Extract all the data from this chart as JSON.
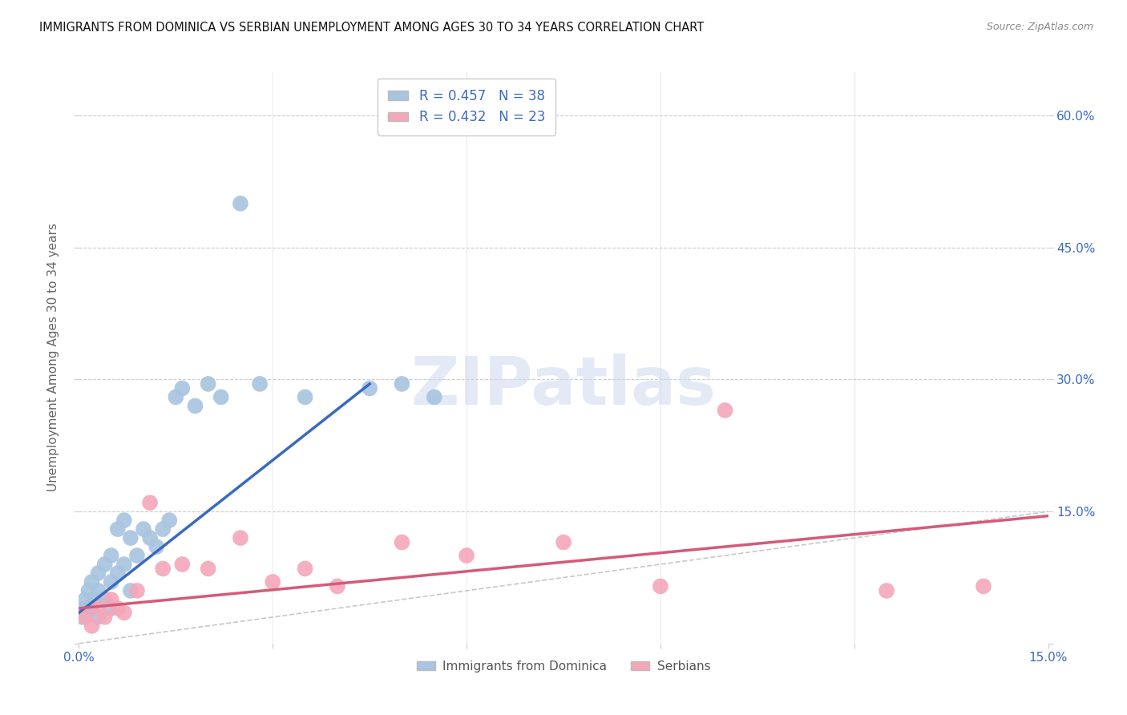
{
  "title": "IMMIGRANTS FROM DOMINICA VS SERBIAN UNEMPLOYMENT AMONG AGES 30 TO 34 YEARS CORRELATION CHART",
  "source": "Source: ZipAtlas.com",
  "ylabel": "Unemployment Among Ages 30 to 34 years",
  "xlim": [
    0.0,
    0.15
  ],
  "ylim": [
    0.0,
    0.65
  ],
  "dominica_R": 0.457,
  "dominica_N": 38,
  "serbian_R": 0.432,
  "serbian_N": 23,
  "dominica_color": "#a8c4e0",
  "dominica_line_color": "#3a6abf",
  "serbian_color": "#f4a7b9",
  "serbian_line_color": "#d45a78",
  "diagonal_color": "#bbbbbb",
  "dominica_x": [
    0.0005,
    0.001,
    0.001,
    0.0015,
    0.002,
    0.002,
    0.0025,
    0.003,
    0.003,
    0.003,
    0.004,
    0.004,
    0.005,
    0.005,
    0.005,
    0.006,
    0.006,
    0.007,
    0.007,
    0.008,
    0.008,
    0.009,
    0.01,
    0.011,
    0.012,
    0.013,
    0.014,
    0.015,
    0.016,
    0.018,
    0.02,
    0.022,
    0.025,
    0.028,
    0.035,
    0.045,
    0.05,
    0.055
  ],
  "dominica_y": [
    0.03,
    0.04,
    0.05,
    0.06,
    0.04,
    0.07,
    0.05,
    0.03,
    0.06,
    0.08,
    0.05,
    0.09,
    0.04,
    0.07,
    0.1,
    0.08,
    0.13,
    0.09,
    0.14,
    0.06,
    0.12,
    0.1,
    0.13,
    0.12,
    0.11,
    0.13,
    0.14,
    0.28,
    0.29,
    0.27,
    0.295,
    0.28,
    0.5,
    0.295,
    0.28,
    0.29,
    0.295,
    0.28
  ],
  "serbian_x": [
    0.001,
    0.002,
    0.003,
    0.004,
    0.005,
    0.006,
    0.007,
    0.009,
    0.011,
    0.013,
    0.016,
    0.02,
    0.025,
    0.03,
    0.035,
    0.04,
    0.05,
    0.06,
    0.075,
    0.09,
    0.1,
    0.125,
    0.14
  ],
  "serbian_y": [
    0.03,
    0.02,
    0.04,
    0.03,
    0.05,
    0.04,
    0.035,
    0.06,
    0.16,
    0.085,
    0.09,
    0.085,
    0.12,
    0.07,
    0.085,
    0.065,
    0.115,
    0.1,
    0.115,
    0.065,
    0.265,
    0.06,
    0.065
  ],
  "dom_line_x0": 0.0,
  "dom_line_x1": 0.045,
  "dom_line_y0": 0.035,
  "dom_line_y1": 0.295,
  "ser_line_x0": 0.0,
  "ser_line_x1": 0.15,
  "ser_line_y0": 0.04,
  "ser_line_y1": 0.145
}
